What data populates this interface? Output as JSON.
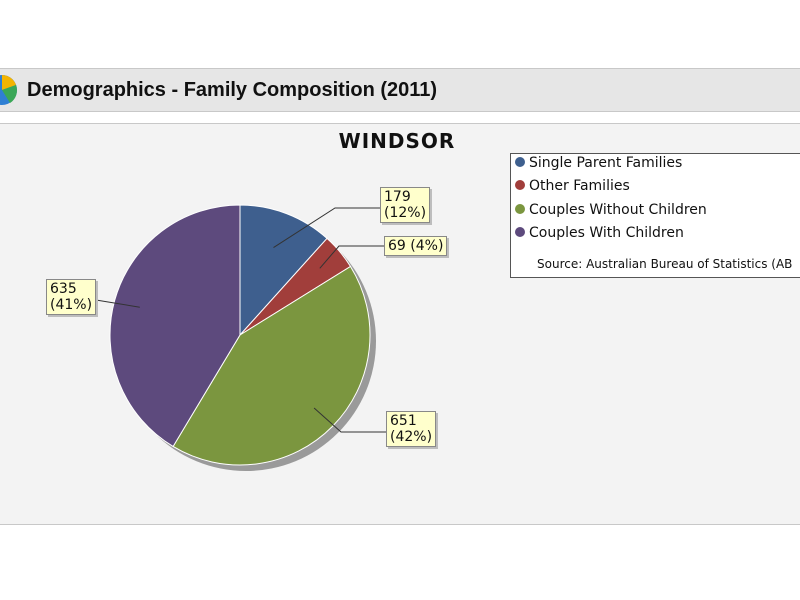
{
  "header": {
    "title": "Demographics - Family Composition (2011)",
    "icon": "pie-chart-icon"
  },
  "chart_data": {
    "type": "pie",
    "title": "WINDSOR",
    "slices": [
      {
        "name": "Single Parent Families",
        "value": 179,
        "percent_label": "(12%)",
        "value_label": "179",
        "color": "#3e5f8e"
      },
      {
        "name": "Other Families",
        "value": 69,
        "percent_label": "(4%)",
        "value_label": "69",
        "color": "#a13e3b"
      },
      {
        "name": "Couples Without Children",
        "value": 651,
        "percent_label": "(42%)",
        "value_label": "651",
        "color": "#7b963f"
      },
      {
        "name": "Couples With Children",
        "value": 635,
        "percent_label": "(41%)",
        "value_label": "635",
        "color": "#5d4a7d"
      }
    ],
    "legend_placement": "right",
    "source": "Source: Australian Bureau of Statistics (AB"
  }
}
